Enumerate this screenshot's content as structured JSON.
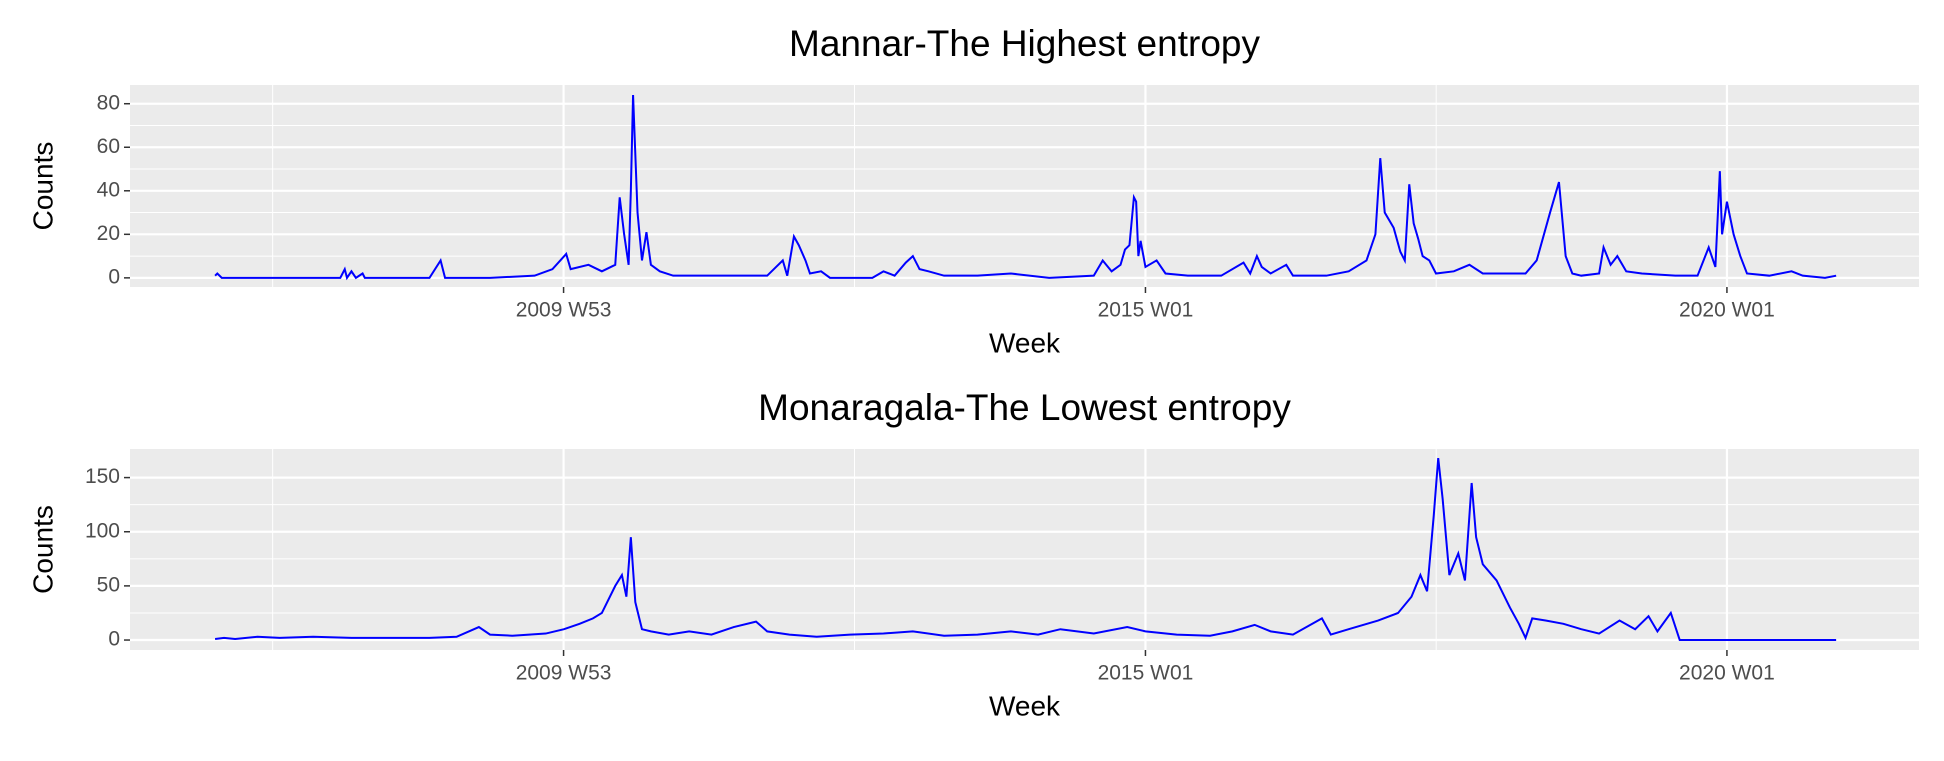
{
  "chart_data": [
    {
      "type": "line",
      "title": "Mannar-The Highest entropy",
      "x_label": "Week",
      "y_label": "Counts",
      "color": "#0000ff",
      "grid": true,
      "xlim": [
        "2006 W15",
        "2021 W35"
      ],
      "xticks": [
        "2009 W53",
        "2015 W01",
        "2020 W01"
      ],
      "ylim": [
        -4.2,
        88.6
      ],
      "yticks": [
        0,
        20,
        40,
        60,
        80
      ],
      "x": [
        "2007 W01",
        "2007 W02",
        "2007 W04",
        "2007 W30",
        "2008 W05",
        "2008 W07",
        "2008 W08",
        "2008 W10",
        "2008 W12",
        "2008 W15",
        "2008 W16",
        "2008 W45",
        "2008 W50",
        "2008 W52",
        "2009 W20",
        "2009 W40",
        "2009 W48",
        "2010 W02",
        "2010 W04",
        "2010 W12",
        "2010 W18",
        "2010 W24",
        "2010 W26",
        "2010 W28",
        "2010 W30",
        "2010 W31",
        "2010 W32",
        "2010 W34",
        "2010 W36",
        "2010 W38",
        "2010 W40",
        "2010 W44",
        "2010 W50",
        "2011 W20",
        "2011 W40",
        "2011 W47",
        "2011 W49",
        "2011 W52",
        "2012 W02",
        "2012 W05",
        "2012 W07",
        "2012 W12",
        "2012 W16",
        "2012 W35",
        "2012 W40",
        "2012 W45",
        "2012 W50",
        "2013 W01",
        "2013 W04",
        "2013 W08",
        "2013 W15",
        "2013 W30",
        "2013 W45",
        "2014 W10",
        "2014 W30",
        "2014 W34",
        "2014 W38",
        "2014 W42",
        "2014 W44",
        "2014 W46",
        "2014 W48",
        "2014 W49",
        "2014 W50",
        "2014 W51",
        "2015 W01",
        "2015 W06",
        "2015 W10",
        "2015 W20",
        "2015 W35",
        "2015 W45",
        "2015 W48",
        "2015 W51",
        "2016 W01",
        "2016 W05",
        "2016 W12",
        "2016 W15",
        "2016 W30",
        "2016 W40",
        "2016 W48",
        "2016 W52",
        "2017 W02",
        "2017 W04",
        "2017 W08",
        "2017 W11",
        "2017 W13",
        "2017 W15",
        "2017 W17",
        "2017 W19",
        "2017 W21",
        "2017 W24",
        "2017 W27",
        "2017 W35",
        "2017 W42",
        "2017 W48",
        "2018 W05",
        "2018 W15",
        "2018 W20",
        "2018 W26",
        "2018 W30",
        "2018 W33",
        "2018 W36",
        "2018 W40",
        "2018 W48",
        "2018 W50",
        "2019 W01",
        "2019 W04",
        "2019 W08",
        "2019 W15",
        "2019 W30",
        "2019 W40",
        "2019 W45",
        "2019 W48",
        "2019 W50",
        "2019 W51",
        "2020 W01",
        "2020 W04",
        "2020 W07",
        "2020 W10",
        "2020 W20",
        "2020 W30",
        "2020 W35",
        "2020 W45",
        "2020 W50"
      ],
      "values": [
        1,
        2,
        0,
        0,
        0,
        4,
        0,
        3,
        0,
        2,
        0,
        0,
        8,
        0,
        0,
        1,
        4,
        11,
        4,
        6,
        3,
        6,
        37,
        20,
        6,
        40,
        84,
        30,
        8,
        21,
        6,
        3,
        1,
        1,
        1,
        8,
        1,
        19,
        15,
        8,
        2,
        3,
        0,
        0,
        3,
        1,
        7,
        10,
        4,
        3,
        1,
        1,
        2,
        0,
        1,
        8,
        3,
        6,
        13,
        15,
        37,
        35,
        10,
        17,
        5,
        8,
        2,
        1,
        1,
        7,
        2,
        10,
        5,
        2,
        6,
        1,
        1,
        3,
        8,
        20,
        55,
        30,
        23,
        12,
        8,
        43,
        25,
        18,
        10,
        8,
        2,
        3,
        6,
        2,
        2,
        2,
        8,
        30,
        44,
        10,
        2,
        1,
        2,
        14,
        6,
        10,
        3,
        2,
        1,
        1,
        14,
        5,
        49,
        20,
        35,
        20,
        10,
        2,
        1,
        3,
        1,
        0,
        1
      ]
    },
    {
      "type": "line",
      "title": "Monaragala-The Lowest entropy",
      "x_label": "Week",
      "y_label": "Counts",
      "color": "#0000ff",
      "grid": true,
      "xlim": [
        "2006 W15",
        "2021 W35"
      ],
      "xticks": [
        "2009 W53",
        "2015 W01",
        "2020 W01"
      ],
      "ylim": [
        -9.2,
        176.4
      ],
      "yticks": [
        0,
        50,
        100,
        150
      ],
      "x": [
        "2007 W01",
        "2007 W05",
        "2007 W10",
        "2007 W20",
        "2007 W30",
        "2007 W45",
        "2008 W10",
        "2008 W30",
        "2008 W45",
        "2009 W05",
        "2009 W15",
        "2009 W20",
        "2009 W30",
        "2009 W45",
        "2010 W01",
        "2010 W08",
        "2010 W14",
        "2010 W18",
        "2010 W24",
        "2010 W27",
        "2010 W29",
        "2010 W31",
        "2010 W33",
        "2010 W36",
        "2010 W40",
        "2010 W48",
        "2011 W05",
        "2011 W15",
        "2011 W25",
        "2011 W35",
        "2011 W40",
        "2011 W50",
        "2012 W10",
        "2012 W25",
        "2012 W40",
        "2013 W01",
        "2013 W15",
        "2013 W30",
        "2013 W45",
        "2014 W05",
        "2014 W15",
        "2014 W30",
        "2014 W45",
        "2015 W01",
        "2015 W15",
        "2015 W30",
        "2015 W40",
        "2015 W50",
        "2016 W05",
        "2016 W15",
        "2016 W28",
        "2016 W32",
        "2016 W40",
        "2017 W01",
        "2017 W10",
        "2017 W16",
        "2017 W20",
        "2017 W23",
        "2017 W26",
        "2017 W28",
        "2017 W30",
        "2017 W33",
        "2017 W37",
        "2017 W40",
        "2017 W43",
        "2017 W45",
        "2017 W48",
        "2018 W02",
        "2018 W08",
        "2018 W12",
        "2018 W15",
        "2018 W18",
        "2018 W24",
        "2018 W32",
        "2018 W40",
        "2018 W48",
        "2019 W05",
        "2019 W12",
        "2019 W18",
        "2019 W22",
        "2019 W28",
        "2019 W32",
        "2020 W20",
        "2020 W50"
      ],
      "values": [
        1,
        2,
        1,
        3,
        2,
        3,
        2,
        2,
        2,
        3,
        12,
        5,
        4,
        6,
        10,
        15,
        20,
        25,
        50,
        60,
        40,
        95,
        35,
        10,
        8,
        5,
        8,
        5,
        12,
        17,
        8,
        5,
        3,
        5,
        6,
        8,
        4,
        5,
        8,
        5,
        10,
        6,
        12,
        8,
        5,
        4,
        8,
        14,
        8,
        5,
        20,
        5,
        10,
        18,
        25,
        40,
        60,
        45,
        115,
        168,
        130,
        60,
        80,
        55,
        145,
        95,
        70,
        55,
        30,
        15,
        2,
        20,
        18,
        15,
        10,
        6,
        18,
        10,
        22,
        8,
        25,
        0,
        0,
        0
      ]
    }
  ]
}
